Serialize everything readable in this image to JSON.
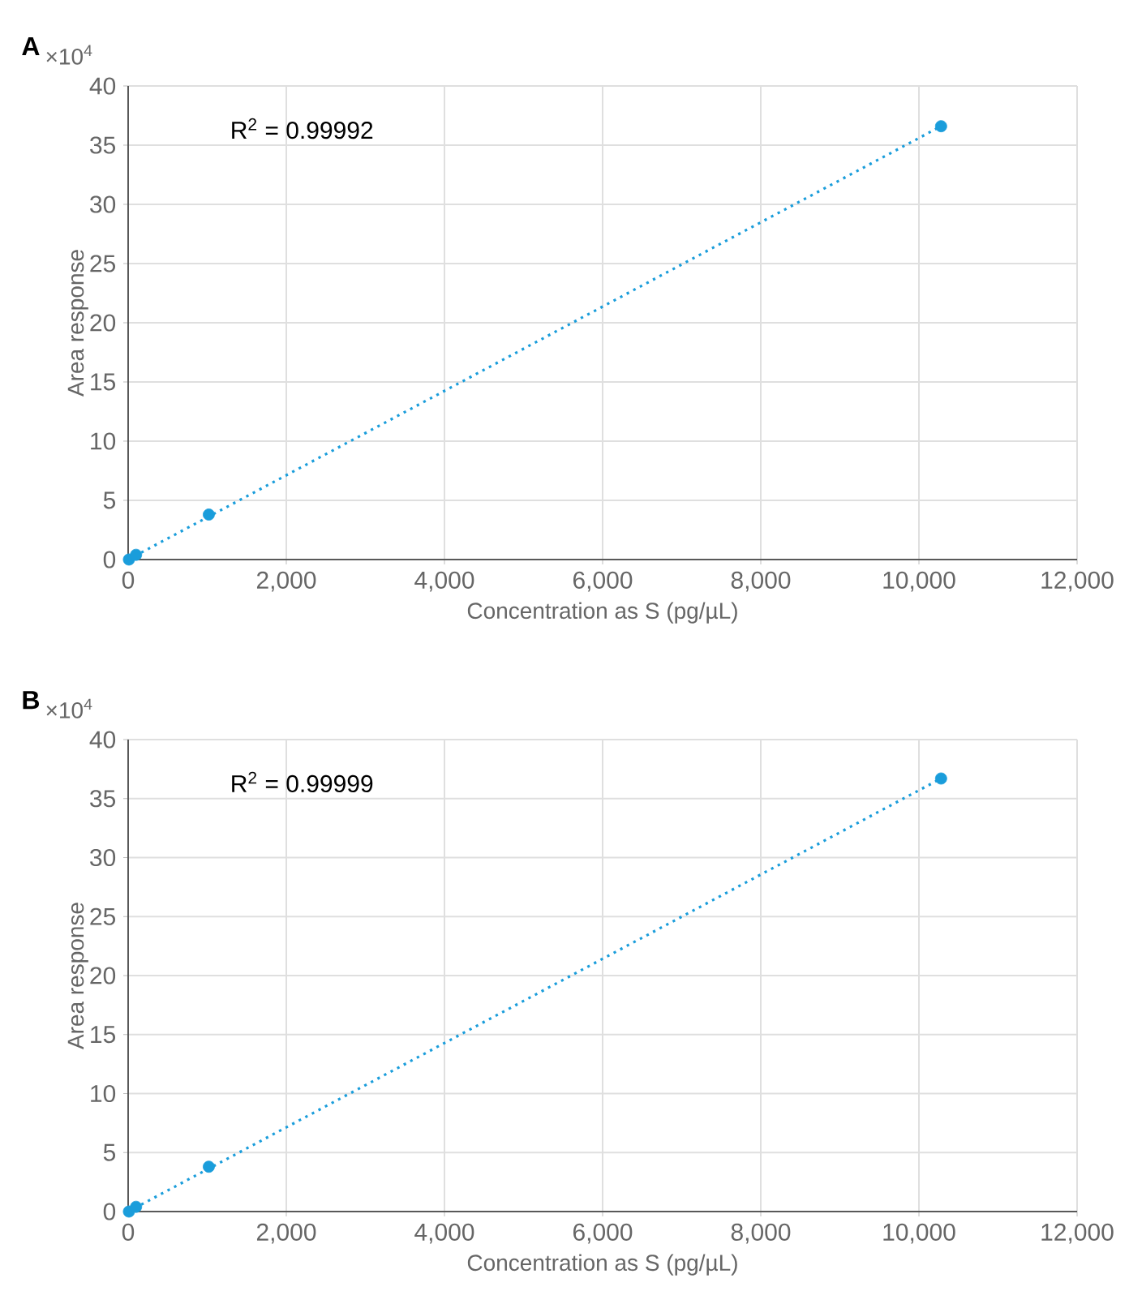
{
  "chart_data": [
    {
      "type": "scatter",
      "title": "A",
      "xlabel": "Concentration as S (pg/µL)",
      "ylabel": "Area response",
      "annotations": [
        "×10$^{4}$",
        "R$^{2}$ = 0.99992"
      ],
      "xlim": [
        0,
        12000
      ],
      "xticks": [
        {
          "value": 0,
          "label": "0"
        },
        {
          "value": 2000,
          "label": "2,000"
        },
        {
          "value": 4000,
          "label": "4,000"
        },
        {
          "value": 6000,
          "label": "6,000"
        },
        {
          "value": 8000,
          "label": "8,000"
        },
        {
          "value": 10000,
          "label": "10,000"
        },
        {
          "value": 12000,
          "label": "12,000"
        }
      ],
      "ylim": [
        0,
        40
      ],
      "yticks": [
        0,
        5,
        10,
        15,
        20,
        25,
        30,
        35,
        40
      ],
      "grid": true,
      "marker": "circle",
      "series": [
        {
          "color": "#1a9ddb",
          "x": [
            10,
            50,
            100,
            1020,
            10280
          ],
          "values": [
            0,
            null,
            0.4,
            3.8,
            36.6
          ]
        },
        {
          "type": "line",
          "color": "#1a9ddb",
          "line_style": "dotted",
          "marker": "none",
          "x": [
            0,
            10280
          ],
          "values": [
            0,
            36.6
          ]
        }
      ]
    },
    {
      "type": "scatter",
      "title": "B",
      "xlabel": "Concentration as S (pg/µL)",
      "ylabel": "Area response",
      "annotations": [
        "×10$^{4}$",
        "R$^{2}$ = 0.99999"
      ],
      "xlim": [
        0,
        12000
      ],
      "xticks": [
        {
          "value": 0,
          "label": "0"
        },
        {
          "value": 2000,
          "label": "2,000"
        },
        {
          "value": 4000,
          "label": "4,000"
        },
        {
          "value": 6000,
          "label": "6,000"
        },
        {
          "value": 8000,
          "label": "8,000"
        },
        {
          "value": 10000,
          "label": "10,000"
        },
        {
          "value": 12000,
          "label": "12,000"
        }
      ],
      "ylim": [
        0,
        40
      ],
      "yticks": [
        0,
        5,
        10,
        15,
        20,
        25,
        30,
        35,
        40
      ],
      "grid": true,
      "marker": "circle",
      "series": [
        {
          "color": "#1a9ddb",
          "x": [
            10,
            50,
            100,
            1020,
            10280
          ],
          "values": [
            0,
            null,
            0.4,
            3.8,
            36.7
          ]
        },
        {
          "type": "line",
          "color": "#1a9ddb",
          "line_style": "dotted",
          "marker": "none",
          "x": [
            0,
            10280
          ],
          "values": [
            0,
            36.7
          ]
        }
      ]
    }
  ]
}
